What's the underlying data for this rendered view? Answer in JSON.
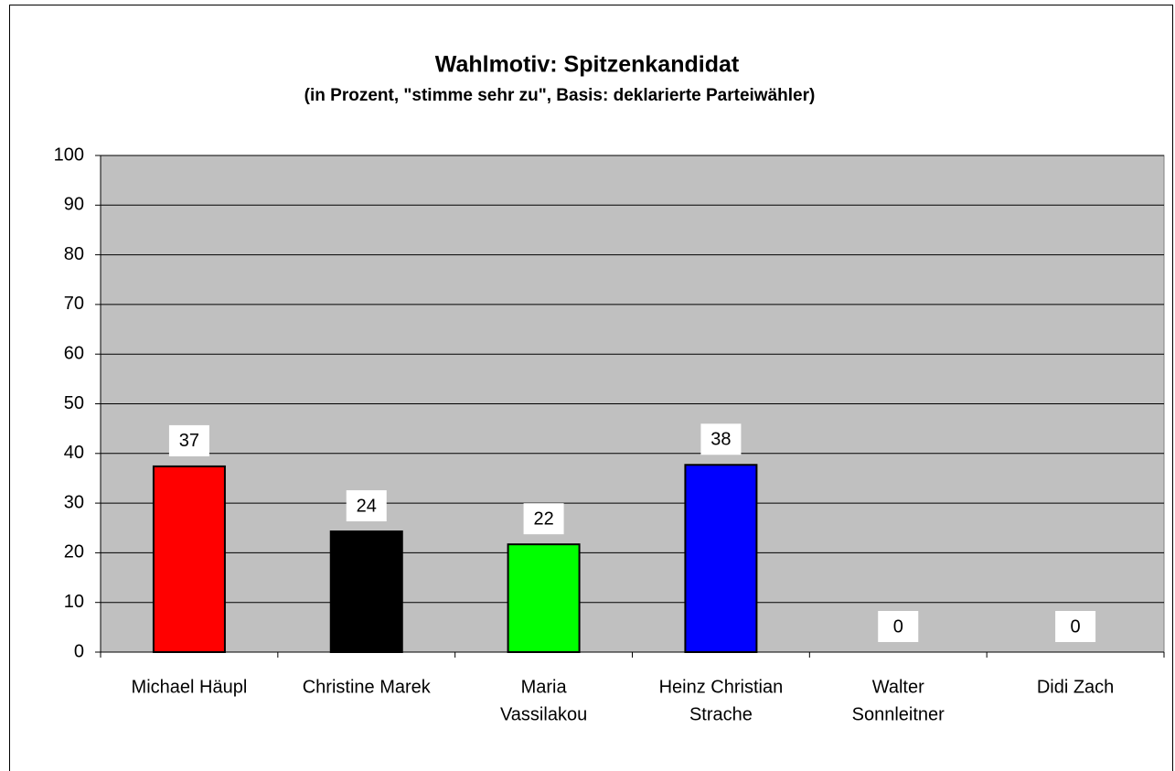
{
  "chart_data": {
    "type": "bar",
    "title": "Wahlmotiv: Spitzenkandidat",
    "subtitle": "(in Prozent, \"stimme sehr zu\", Basis: deklarierte Parteiwähler)",
    "categories": [
      [
        "Michael Häupl"
      ],
      [
        "Christine Marek"
      ],
      [
        "Maria",
        "Vassilakou"
      ],
      [
        "Heinz Christian",
        "Strache"
      ],
      [
        "Walter",
        "Sonnleitner"
      ],
      [
        "Didi Zach"
      ]
    ],
    "values": [
      37.4,
      24.3,
      21.7,
      37.7,
      0,
      0
    ],
    "value_labels": [
      "37",
      "24",
      "22",
      "38",
      "0",
      "0"
    ],
    "colors": [
      "#ff0000",
      "#000000",
      "#00ff00",
      "#0000ff",
      "#ffffff",
      "#ffffff"
    ],
    "ylim": [
      0,
      100
    ],
    "yticks": [
      0,
      10,
      20,
      30,
      40,
      50,
      60,
      70,
      80,
      90,
      100
    ],
    "grid": true
  }
}
